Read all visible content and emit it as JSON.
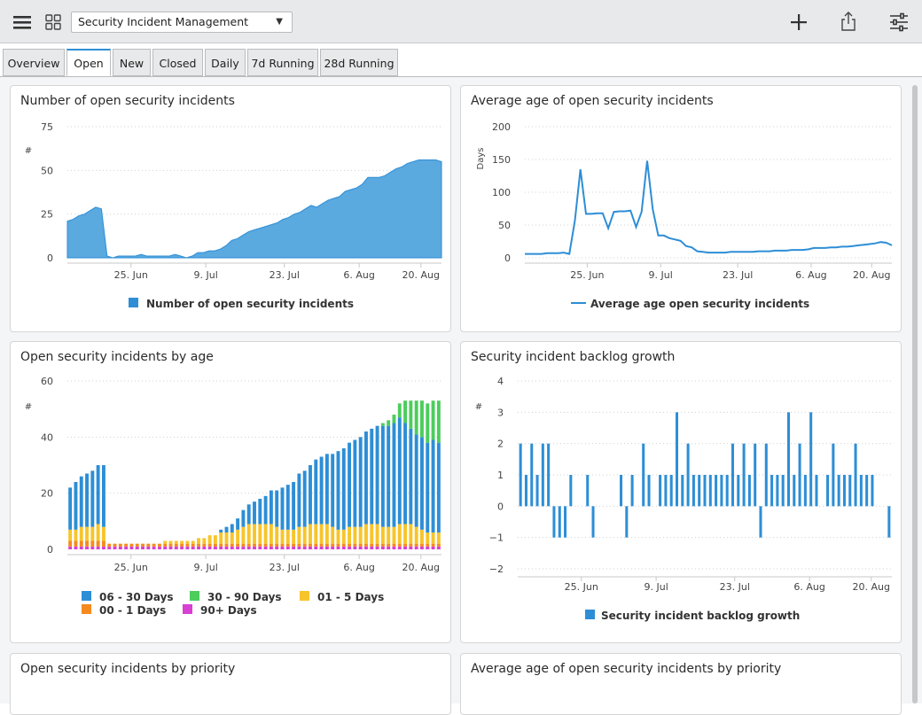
{
  "header": {
    "dashboard_select": "Security Incident Management",
    "icons": [
      "menu-icon",
      "grid-icon",
      "plus-icon",
      "share-icon",
      "settings-sliders-icon"
    ]
  },
  "tabs": [
    {
      "label": "Overview",
      "active": false
    },
    {
      "label": "Open",
      "active": true
    },
    {
      "label": "New",
      "active": false
    },
    {
      "label": "Closed",
      "active": false
    },
    {
      "label": "Daily",
      "active": false
    },
    {
      "label": "7d Running",
      "active": false
    },
    {
      "label": "28d Running",
      "active": false
    }
  ],
  "cards": {
    "c1": {
      "title": "Number of open security incidents"
    },
    "c2": {
      "title": "Average age of open security incidents"
    },
    "c3": {
      "title": "Open security incidents by age"
    },
    "c4": {
      "title": "Security incident backlog growth"
    },
    "c5": {
      "title": "Open security incidents by priority"
    },
    "c6": {
      "title": "Average age of open security incidents by priority"
    }
  },
  "colors": {
    "blue": "#2d8ed6",
    "area": "#5aa9df",
    "green": "#4ccd5c",
    "yellow": "#f7c52b",
    "orange": "#f58a1f",
    "magenta": "#d93fd3"
  },
  "chart_data": [
    {
      "id": "c1",
      "type": "area",
      "title": "Number of open security incidents",
      "ylabel": "#",
      "yticks": [
        0,
        25,
        50,
        75
      ],
      "ylim": [
        0,
        75
      ],
      "xticks": [
        "25. Jun",
        "9. Jul",
        "23. Jul",
        "6. Aug",
        "20. Aug"
      ],
      "grid": true,
      "legend_position": "bottom",
      "series": [
        {
          "name": "Number of open security incidents",
          "values": [
            21,
            22,
            24,
            25,
            27,
            29,
            28,
            1,
            0,
            1,
            1,
            1,
            1,
            2,
            1,
            1,
            1,
            1,
            1,
            2,
            1,
            0,
            1,
            3,
            3,
            4,
            4,
            5,
            7,
            10,
            11,
            13,
            15,
            16,
            17,
            18,
            19,
            20,
            22,
            23,
            25,
            26,
            28,
            30,
            29,
            31,
            33,
            34,
            35,
            38,
            39,
            40,
            42,
            46,
            46,
            46,
            47,
            49,
            51,
            52,
            54,
            55,
            56,
            56,
            56,
            56,
            55
          ]
        }
      ]
    },
    {
      "id": "c2",
      "type": "line",
      "title": "Average age of open security incidents",
      "ylabel": "Days",
      "yticks": [
        0,
        50,
        100,
        150,
        200
      ],
      "ylim": [
        0,
        200
      ],
      "xticks": [
        "25. Jun",
        "9. Jul",
        "23. Jul",
        "6. Aug",
        "20. Aug"
      ],
      "grid": true,
      "legend_position": "bottom",
      "series": [
        {
          "name": "Average age open security incidents",
          "values": [
            6,
            6,
            6,
            6,
            7,
            7,
            7,
            8,
            6,
            57,
            135,
            67,
            67,
            68,
            68,
            45,
            70,
            71,
            71,
            72,
            47,
            70,
            148,
            74,
            34,
            34,
            30,
            28,
            26,
            18,
            16,
            10,
            9,
            8,
            8,
            8,
            8,
            9,
            9,
            9,
            9,
            9,
            10,
            10,
            10,
            11,
            11,
            11,
            12,
            12,
            12,
            13,
            15,
            15,
            15,
            16,
            16,
            17,
            17,
            18,
            19,
            20,
            21,
            22,
            24,
            23,
            19
          ]
        }
      ]
    },
    {
      "id": "c3",
      "type": "bar",
      "stacked": true,
      "title": "Open security incidents by age",
      "ylabel": "#",
      "yticks": [
        0,
        20,
        40,
        60
      ],
      "ylim": [
        0,
        60
      ],
      "xticks": [
        "25. Jun",
        "9. Jul",
        "23. Jul",
        "6. Aug",
        "20. Aug"
      ],
      "grid": true,
      "legend_position": "bottom",
      "series": [
        {
          "name": "06 - 30 Days",
          "color": "#2d8ed6",
          "values": [
            15,
            17,
            18,
            19,
            20,
            21,
            22,
            0,
            0,
            0,
            0,
            0,
            0,
            0,
            0,
            0,
            0,
            0,
            0,
            0,
            0,
            0,
            0,
            0,
            0,
            0,
            0,
            1,
            2,
            3,
            4,
            6,
            7,
            8,
            9,
            10,
            12,
            13,
            15,
            16,
            17,
            19,
            20,
            21,
            23,
            24,
            25,
            26,
            28,
            29,
            30,
            31,
            32,
            33,
            34,
            35,
            36,
            36,
            37,
            38,
            36,
            34,
            33,
            33,
            32,
            33,
            32
          ]
        },
        {
          "name": "30 - 90 Days",
          "color": "#4ccd5c",
          "values": [
            0,
            0,
            0,
            0,
            0,
            0,
            0,
            0,
            0,
            0,
            0,
            0,
            0,
            0,
            0,
            0,
            0,
            0,
            0,
            0,
            0,
            0,
            0,
            0,
            0,
            0,
            0,
            0,
            0,
            0,
            0,
            0,
            0,
            0,
            0,
            0,
            0,
            0,
            0,
            0,
            0,
            0,
            0,
            0,
            0,
            0,
            0,
            0,
            0,
            0,
            0,
            0,
            0,
            0,
            0,
            0,
            1,
            2,
            3,
            5,
            8,
            10,
            12,
            13,
            14,
            14,
            15
          ]
        },
        {
          "name": "01 - 5 Days",
          "color": "#f7c52b",
          "values": [
            4,
            4,
            5,
            5,
            5,
            6,
            5,
            0,
            0,
            0,
            0,
            0,
            0,
            0,
            0,
            0,
            0,
            1,
            1,
            1,
            1,
            1,
            1,
            2,
            2,
            3,
            3,
            4,
            4,
            4,
            5,
            6,
            7,
            7,
            7,
            7,
            7,
            6,
            5,
            5,
            5,
            6,
            6,
            7,
            7,
            7,
            7,
            6,
            5,
            5,
            6,
            6,
            6,
            7,
            7,
            7,
            6,
            6,
            6,
            7,
            7,
            7,
            6,
            5,
            4,
            4,
            4
          ]
        },
        {
          "name": "00 - 1 Days",
          "color": "#f58a1f",
          "values": [
            2,
            2,
            2,
            2,
            2,
            2,
            2,
            1,
            1,
            1,
            1,
            1,
            1,
            1,
            1,
            1,
            1,
            1,
            1,
            1,
            1,
            1,
            1,
            1,
            1,
            1,
            1,
            1,
            1,
            1,
            1,
            1,
            1,
            1,
            1,
            1,
            1,
            1,
            1,
            1,
            1,
            1,
            1,
            1,
            1,
            1,
            1,
            1,
            1,
            1,
            1,
            1,
            1,
            1,
            1,
            1,
            1,
            1,
            1,
            1,
            1,
            1,
            1,
            1,
            1,
            1,
            1
          ]
        },
        {
          "name": "90+ Days",
          "color": "#d93fd3",
          "values": [
            1,
            1,
            1,
            1,
            1,
            1,
            1,
            1,
            1,
            1,
            1,
            1,
            1,
            1,
            1,
            1,
            1,
            1,
            1,
            1,
            1,
            1,
            1,
            1,
            1,
            1,
            1,
            1,
            1,
            1,
            1,
            1,
            1,
            1,
            1,
            1,
            1,
            1,
            1,
            1,
            1,
            1,
            1,
            1,
            1,
            1,
            1,
            1,
            1,
            1,
            1,
            1,
            1,
            1,
            1,
            1,
            1,
            1,
            1,
            1,
            1,
            1,
            1,
            1,
            1,
            1,
            1
          ]
        }
      ]
    },
    {
      "id": "c4",
      "type": "bar",
      "title": "Security incident backlog growth",
      "ylabel": "#",
      "yticks": [
        -2,
        -1,
        0,
        1,
        2,
        3,
        4
      ],
      "ylim": [
        -2,
        4
      ],
      "xticks": [
        "25. Jun",
        "9. Jul",
        "23. Jul",
        "6. Aug",
        "20. Aug"
      ],
      "grid": true,
      "legend_position": "bottom",
      "series": [
        {
          "name": "Security incident backlog growth",
          "values": [
            2,
            1,
            2,
            1,
            2,
            2,
            -1,
            -1,
            -1,
            1,
            0,
            0,
            1,
            -1,
            0,
            0,
            0,
            0,
            1,
            -1,
            1,
            0,
            2,
            1,
            0,
            1,
            1,
            1,
            3,
            1,
            2,
            1,
            1,
            1,
            1,
            1,
            1,
            1,
            2,
            1,
            2,
            1,
            2,
            -1,
            2,
            1,
            1,
            1,
            3,
            1,
            2,
            1,
            3,
            1,
            0,
            1,
            2,
            1,
            1,
            1,
            2,
            1,
            1,
            1,
            0,
            0,
            -1
          ]
        }
      ]
    }
  ]
}
